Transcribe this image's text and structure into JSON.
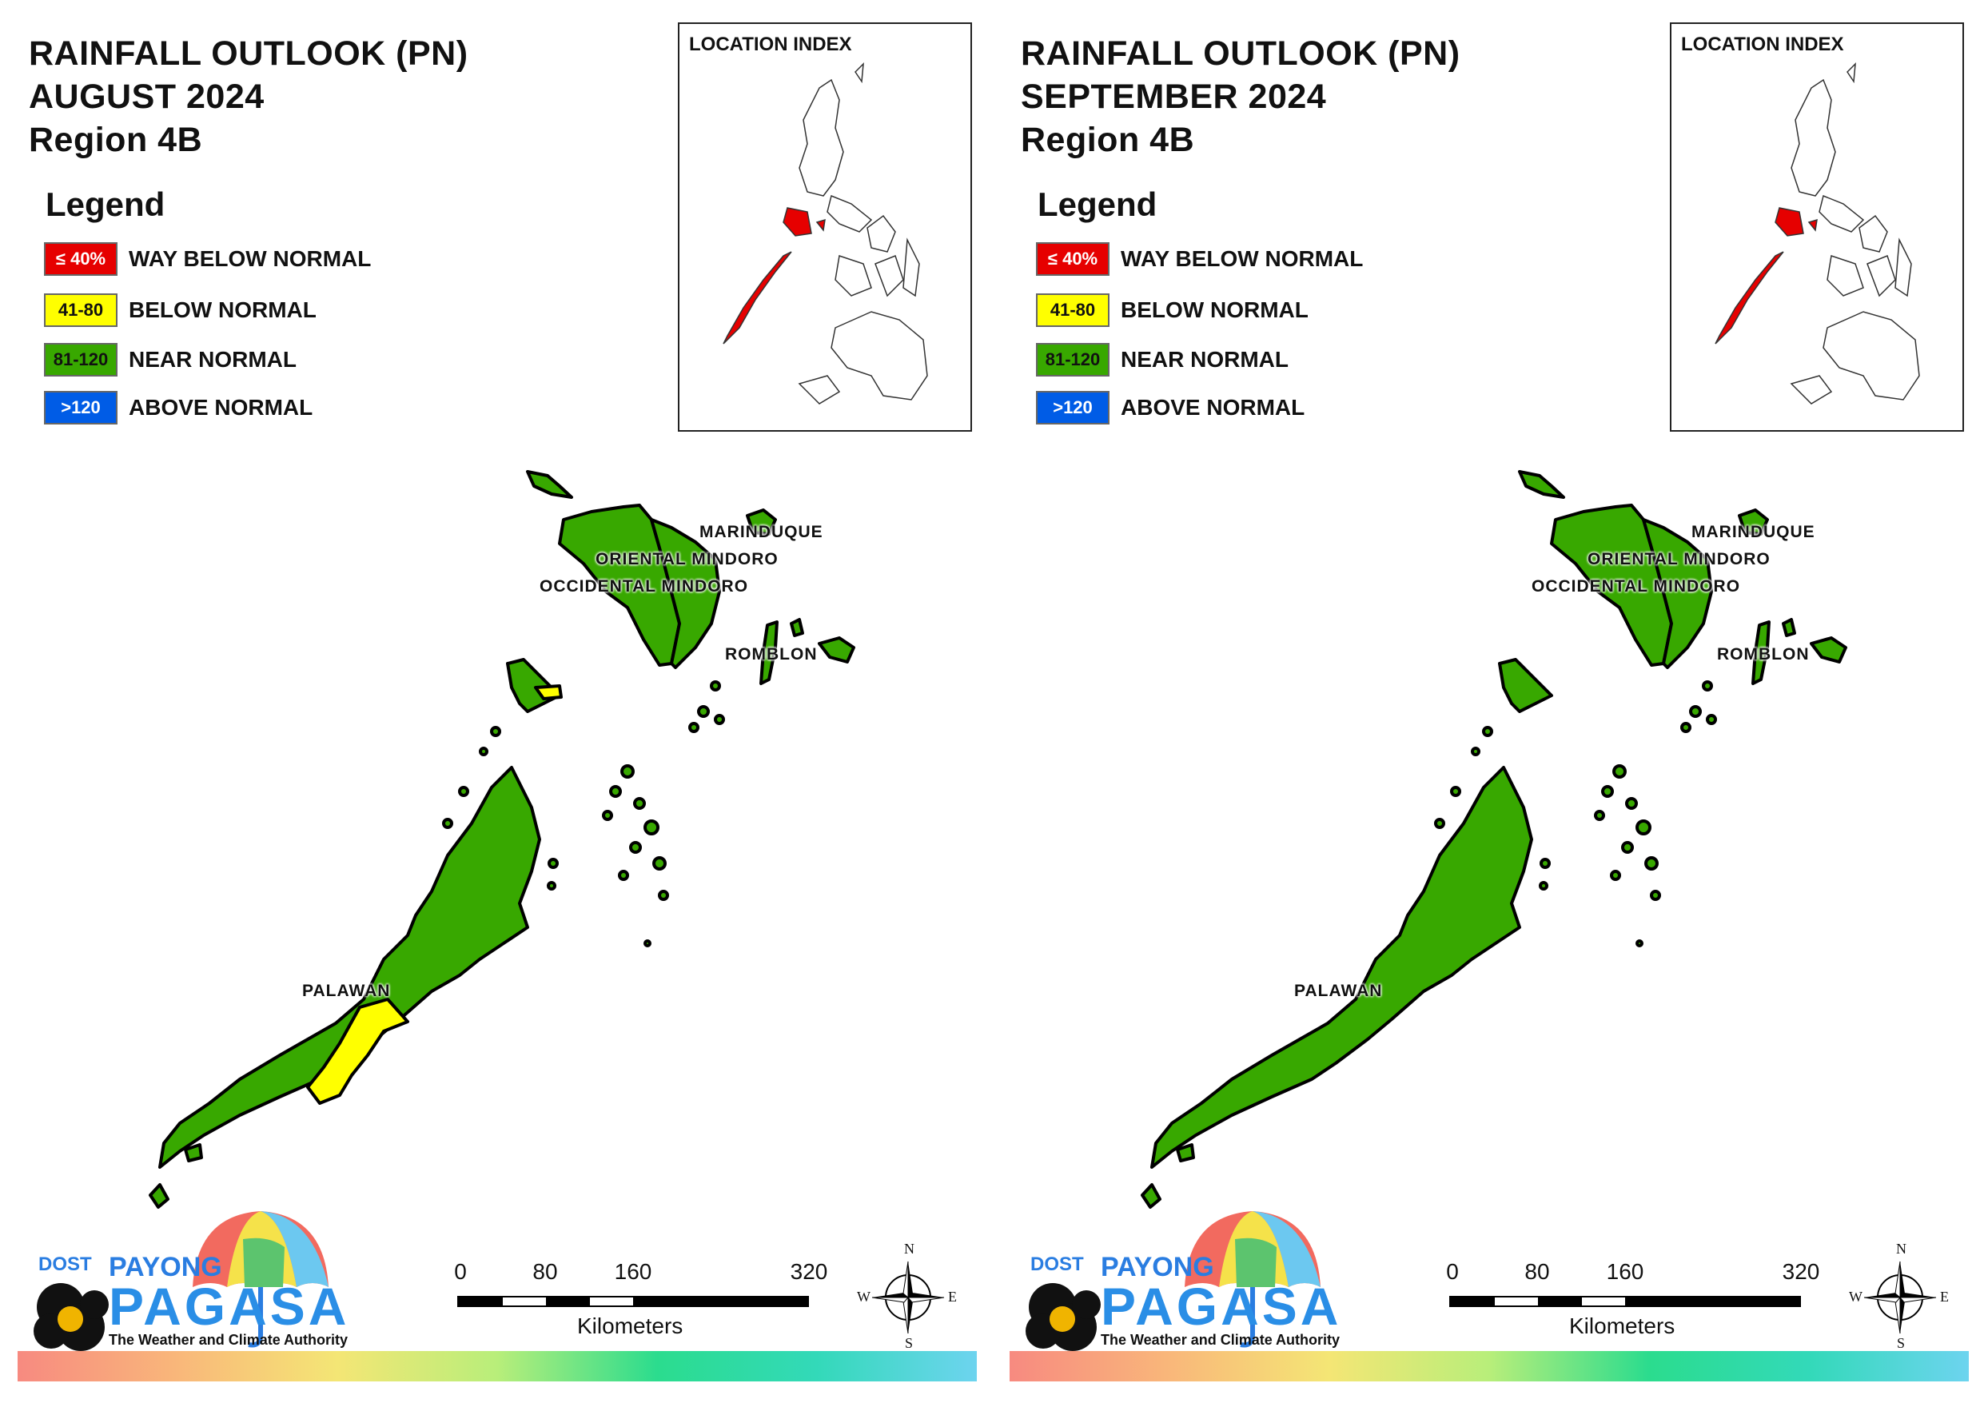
{
  "panels": [
    {
      "title_line1": "RAINFALL OUTLOOK (PN)",
      "title_line2": "AUGUST 2024",
      "title_line3": "Region 4B",
      "palawan_class": "mixed"
    },
    {
      "title_line1": "RAINFALL OUTLOOK (PN)",
      "title_line2": "SEPTEMBER 2024",
      "title_line3": "Region 4B",
      "palawan_class": "near"
    }
  ],
  "legend": {
    "title": "Legend",
    "items": [
      {
        "swatch": "≤ 40%",
        "label": "WAY BELOW NORMAL",
        "color": "#e60000",
        "text_color": "#ffffff"
      },
      {
        "swatch": "41-80",
        "label": "BELOW NORMAL",
        "color": "#ffff00",
        "text_color": "#000000"
      },
      {
        "swatch": "81-120",
        "label": "NEAR NORMAL",
        "color": "#38a800",
        "text_color": "#000000"
      },
      {
        "swatch": ">120",
        "label": "ABOVE NORMAL",
        "color": "#005ce6",
        "text_color": "#ffffff"
      }
    ]
  },
  "location_index": {
    "title": "LOCATION INDEX"
  },
  "places": {
    "marinduque": "MARINDUQUE",
    "oriental_mindoro": "ORIENTAL MINDORO",
    "occidental_mindoro": "OCCIDENTAL MINDORO",
    "romblon": "ROMBLON",
    "palawan": "PALAWAN"
  },
  "scale": {
    "ticks": [
      "0",
      "80",
      "160",
      "320"
    ],
    "unit": "Kilometers"
  },
  "compass": {
    "n": "N",
    "e": "E",
    "s": "S",
    "w": "W"
  },
  "logo": {
    "dost": "DOST",
    "payong": "PAYONG",
    "pagasa": "PAGASA",
    "tagline": "The Weather and Climate Authority"
  },
  "colors": {
    "near_normal": "#38a800",
    "below_normal": "#ffff00",
    "way_below_normal": "#e60000",
    "above_normal": "#005ce6"
  }
}
